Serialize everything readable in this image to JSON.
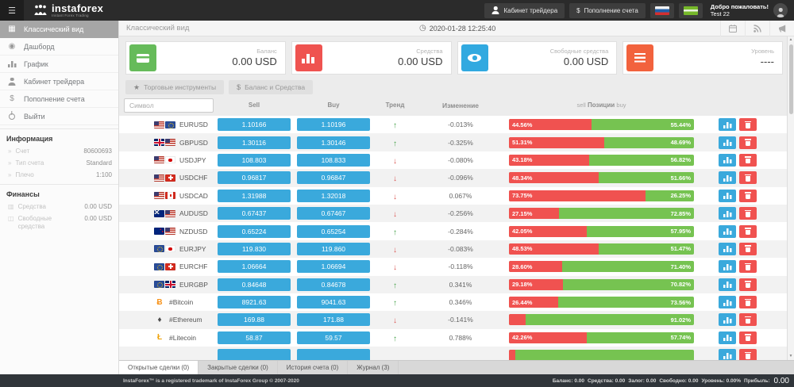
{
  "topbar": {
    "brand": "instaforex",
    "brand_sub": "Instant Forex Trading",
    "cabinet_button": "Кабинет трейдера",
    "deposit_icon": "$",
    "deposit_button": "Пополнение счета",
    "welcome_line1": "Добро пожаловать!",
    "welcome_line2": "Test 22"
  },
  "subheader": {
    "title": "Классический вид",
    "clock_icon": "◷",
    "datetime": "2020-01-28 12:25:40"
  },
  "sidebar": {
    "menu": [
      {
        "label": "Классический вид",
        "icon": "classic-view-icon",
        "active": true
      },
      {
        "label": "Дашборд",
        "icon": "dashboard-icon",
        "active": false
      },
      {
        "label": "График",
        "icon": "chart-icon",
        "active": false
      },
      {
        "label": "Кабинет трейдера",
        "icon": "user-icon",
        "active": false
      },
      {
        "label": "Пополнение счета",
        "icon": "dollar-icon",
        "active": false
      },
      {
        "label": "Выйти",
        "icon": "logout-icon",
        "active": false
      }
    ],
    "info_heading": "Информация",
    "info_rows": [
      {
        "label": "Счет",
        "value": "80600693"
      },
      {
        "label": "Тип счета",
        "value": "Standard"
      },
      {
        "label": "Плечо",
        "value": "1:100"
      }
    ],
    "fin_heading": "Финансы",
    "fin_rows": [
      {
        "label": "Средства",
        "value": "0.00 USD",
        "icon": "equity-icon"
      },
      {
        "label": "Свободные средства",
        "value": "0.00 USD",
        "icon": "free-funds-icon"
      }
    ]
  },
  "cards": [
    {
      "label": "Баланс",
      "value": "0.00 USD",
      "color": "#66bb5a",
      "icon": "credit-card-icon"
    },
    {
      "label": "Средства",
      "value": "0.00 USD",
      "color": "#ef5350",
      "icon": "bar-chart-icon"
    },
    {
      "label": "Свободные средства",
      "value": "0.00 USD",
      "color": "#31a9e0",
      "icon": "eye-icon"
    },
    {
      "label": "Уровень",
      "value": "----",
      "color": "#f2623d",
      "icon": "menu-icon"
    }
  ],
  "toolbar": {
    "instruments_icon": "★",
    "instruments_button": "Торговые инструменты",
    "balance_icon": "$",
    "balance_button": "Баланс и Средства"
  },
  "table": {
    "search_placeholder": "Символ",
    "headers": {
      "sell": "Sell",
      "buy": "Buy",
      "trend": "Тренд",
      "change": "Изменение",
      "pos_sell": "sell",
      "pos_mid": "Позиции",
      "pos_buy": "buy"
    },
    "rows": [
      {
        "symbol": "EURUSD",
        "flags": [
          "us",
          "eu"
        ],
        "sell": "1.10166",
        "buy": "1.10196",
        "trend": "up",
        "change": "-0.013%",
        "sell_pct": 44.56,
        "sell_label": "44.56%",
        "buy_label": "55.44%"
      },
      {
        "symbol": "GBPUSD",
        "flags": [
          "gb",
          "us"
        ],
        "sell": "1.30116",
        "buy": "1.30146",
        "trend": "up",
        "change": "-0.325%",
        "sell_pct": 51.31,
        "sell_label": "51.31%",
        "buy_label": "48.69%"
      },
      {
        "symbol": "USDJPY",
        "flags": [
          "us",
          "jp"
        ],
        "sell": "108.803",
        "buy": "108.833",
        "trend": "down",
        "change": "-0.080%",
        "sell_pct": 43.18,
        "sell_label": "43.18%",
        "buy_label": "56.82%"
      },
      {
        "symbol": "USDCHF",
        "flags": [
          "us",
          "ch"
        ],
        "sell": "0.96817",
        "buy": "0.96847",
        "trend": "down",
        "change": "-0.096%",
        "sell_pct": 48.34,
        "sell_label": "48.34%",
        "buy_label": "51.66%"
      },
      {
        "symbol": "USDCAD",
        "flags": [
          "us",
          "ca"
        ],
        "sell": "1.31988",
        "buy": "1.32018",
        "trend": "down",
        "change": "0.067%",
        "sell_pct": 73.75,
        "sell_label": "73.75%",
        "buy_label": "26.25%"
      },
      {
        "symbol": "AUDUSD",
        "flags": [
          "au",
          "us"
        ],
        "sell": "0.67437",
        "buy": "0.67467",
        "trend": "down",
        "change": "-0.256%",
        "sell_pct": 27.15,
        "sell_label": "27.15%",
        "buy_label": "72.85%"
      },
      {
        "symbol": "NZDUSD",
        "flags": [
          "nz",
          "us"
        ],
        "sell": "0.65224",
        "buy": "0.65254",
        "trend": "up",
        "change": "-0.284%",
        "sell_pct": 42.05,
        "sell_label": "42.05%",
        "buy_label": "57.95%"
      },
      {
        "symbol": "EURJPY",
        "flags": [
          "eu",
          "jp"
        ],
        "sell": "119.830",
        "buy": "119.860",
        "trend": "down",
        "change": "-0.083%",
        "sell_pct": 48.53,
        "sell_label": "48.53%",
        "buy_label": "51.47%"
      },
      {
        "symbol": "EURCHF",
        "flags": [
          "eu",
          "ch"
        ],
        "sell": "1.06664",
        "buy": "1.06694",
        "trend": "down",
        "change": "-0.118%",
        "sell_pct": 28.6,
        "sell_label": "28.60%",
        "buy_label": "71.40%"
      },
      {
        "symbol": "EURGBP",
        "flags": [
          "eu",
          "gb"
        ],
        "sell": "0.84648",
        "buy": "0.84678",
        "trend": "up",
        "change": "0.341%",
        "sell_pct": 29.18,
        "sell_label": "29.18%",
        "buy_label": "70.82%"
      },
      {
        "symbol": "#Bitcoin",
        "crypto_glyph": "Ƀ",
        "crypto_color": "#f7941d",
        "sell": "8921.63",
        "buy": "9041.63",
        "trend": "up",
        "change": "0.346%",
        "sell_pct": 26.44,
        "sell_label": "26.44%",
        "buy_label": "73.56%"
      },
      {
        "symbol": "#Ethereum",
        "crypto_glyph": "♦",
        "crypto_color": "#4d4d4d",
        "sell": "169.88",
        "buy": "171.88",
        "trend": "down",
        "change": "-0.141%",
        "sell_pct": 8.98,
        "sell_label": "",
        "buy_label": "91.02%"
      },
      {
        "symbol": "#Litecoin",
        "crypto_glyph": "Ł",
        "crypto_color": "#f0a30a",
        "sell": "58.87",
        "buy": "59.57",
        "trend": "up",
        "change": "0.788%",
        "sell_pct": 42.26,
        "sell_label": "42.26%",
        "buy_label": "57.74%"
      }
    ],
    "partial_row": {
      "sell_pct": 3.5
    }
  },
  "tabs": [
    {
      "label": "Открытые сделки (0)",
      "active": true
    },
    {
      "label": "Закрытые сделки (0)",
      "active": false
    },
    {
      "label": "История счета (0)",
      "active": false
    },
    {
      "label": "Журнал (3)",
      "active": false
    }
  ],
  "footer": {
    "left": "InstaForex™ is a registered trademark of InstaForex Group © 2007-2020",
    "stats": [
      {
        "label": "Баланс:",
        "value": "0.00"
      },
      {
        "label": "Средства:",
        "value": "0.00"
      },
      {
        "label": "Залог:",
        "value": "0.00"
      },
      {
        "label": "Свободно:",
        "value": "0.00"
      },
      {
        "label": "Уровень:",
        "value": "0.00%"
      }
    ],
    "profit_label": "Прибыль:",
    "profit_value": "0.00"
  },
  "colors": {
    "price_button": "#3aa9dc",
    "sell_bar": "#f05250",
    "buy_bar": "#76c351",
    "trend_up": "#43a047",
    "trend_down": "#d9534f"
  }
}
